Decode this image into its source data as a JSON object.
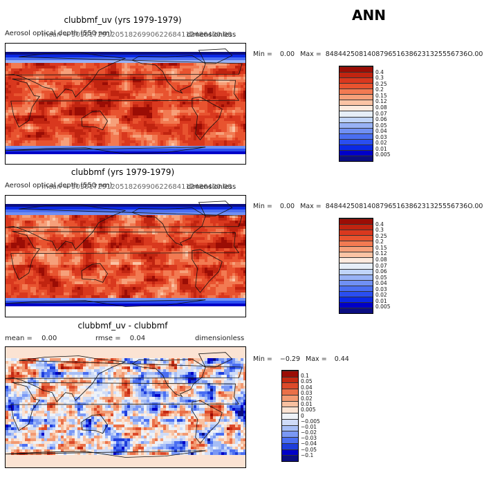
{
  "season": "ANN",
  "colors": {
    "abs_scale": [
      "#0b0e80",
      "#0000c8",
      "#0a28e6",
      "#2a4ef0",
      "#4a6ef2",
      "#7090f4",
      "#98b2f6",
      "#c0d4f9",
      "#e6eef8",
      "#fdeade",
      "#fbc3a4",
      "#f6a07a",
      "#f27a52",
      "#e8532f",
      "#d9381e",
      "#c02410",
      "#9b0d05"
    ],
    "diff_scale": [
      "#0b0e80",
      "#0000c8",
      "#1e3edb",
      "#4a6ef2",
      "#7a98f4",
      "#a6bef6",
      "#cfdcf8",
      "#eef2f8",
      "#fbe3d3",
      "#f8c0a0",
      "#f29a72",
      "#ea7048",
      "#dc4a2a",
      "#c52a12",
      "#9b0d05"
    ],
    "coast": "#111111"
  },
  "panels": [
    {
      "title": "clubbmf_uv (yrs 1979-1979)",
      "mean_text": "mean = 5030172912051826990622684112486400.00",
      "overlap_text": "Aerosol optical depth (550 nm)",
      "units": "dimensionless",
      "min_label": "Min =",
      "min_value": "0.00",
      "max_label": "Max =",
      "max_value": "8484425081408796516386231325556736O.00",
      "colorbar_levels": [
        "0.4",
        "0.3",
        "0.25",
        "0.2",
        "0.15",
        "0.12",
        "0.08",
        "0.07",
        "0.06",
        "0.05",
        "0.04",
        "0.03",
        "0.02",
        "0.01",
        "0.005"
      ],
      "variant": 1
    },
    {
      "title": "clubbmf (yrs 1979-1979)",
      "mean_text": "mean = 5030172912051826990622684112486400.00",
      "overlap_text": "Aerosol optical depth (550 nm)",
      "units": "dimensionless",
      "min_label": "Min =",
      "min_value": "0.00",
      "max_label": "Max =",
      "max_value": "8484425081408796516386231325556736O.00",
      "colorbar_levels": [
        "0.4",
        "0.3",
        "0.25",
        "0.2",
        "0.15",
        "0.12",
        "0.08",
        "0.07",
        "0.06",
        "0.05",
        "0.04",
        "0.03",
        "0.02",
        "0.01",
        "0.005"
      ],
      "variant": 2
    },
    {
      "title": "clubbmf_uv - clubbmf",
      "mean_label": "mean =",
      "mean_value": "0.00",
      "rmse_label": "rmse =",
      "rmse_value": "0.04",
      "units": "dimensionless",
      "min_label": "Min =",
      "min_value": "−0.29",
      "max_label": "Max =",
      "max_value": "0.44",
      "colorbar_levels": [
        "0.1",
        "0.05",
        "0.04",
        "0.03",
        "0.02",
        "0.01",
        "0.005",
        "0",
        "−0.005",
        "−0.01",
        "−0.02",
        "−0.03",
        "−0.04",
        "−0.05",
        "−0.1"
      ],
      "variant": 3
    }
  ],
  "chart_data": [
    {
      "type": "heatmap",
      "title": "clubbmf_uv (yrs 1979-1979)",
      "field": "global map, lon 0-360, lat -90-90",
      "units": "dimensionless",
      "min": 0.0,
      "max": "8484425081408796516386231325556736O.00",
      "mean": "5030172912051826990622684112486400.00",
      "levels": [
        0.005,
        0.01,
        0.02,
        0.03,
        0.04,
        0.05,
        0.06,
        0.07,
        0.08,
        0.12,
        0.15,
        0.2,
        0.25,
        0.3,
        0.4
      ]
    },
    {
      "type": "heatmap",
      "title": "clubbmf (yrs 1979-1979)",
      "field": "global map, lon 0-360, lat -90-90",
      "units": "dimensionless",
      "min": 0.0,
      "max": "8484425081408796516386231325556736O.00",
      "mean": "5030172912051826990622684112486400.00",
      "levels": [
        0.005,
        0.01,
        0.02,
        0.03,
        0.04,
        0.05,
        0.06,
        0.07,
        0.08,
        0.12,
        0.15,
        0.2,
        0.25,
        0.3,
        0.4
      ]
    },
    {
      "type": "heatmap",
      "title": "clubbmf_uv - clubbmf",
      "field": "global map difference, lon 0-360, lat -90-90",
      "units": "dimensionless",
      "min": -0.29,
      "max": 0.44,
      "mean": 0.0,
      "rmse": 0.04,
      "levels": [
        -0.1,
        -0.05,
        -0.04,
        -0.03,
        -0.02,
        -0.01,
        -0.005,
        0,
        0.005,
        0.01,
        0.02,
        0.03,
        0.04,
        0.05,
        0.1
      ]
    }
  ]
}
